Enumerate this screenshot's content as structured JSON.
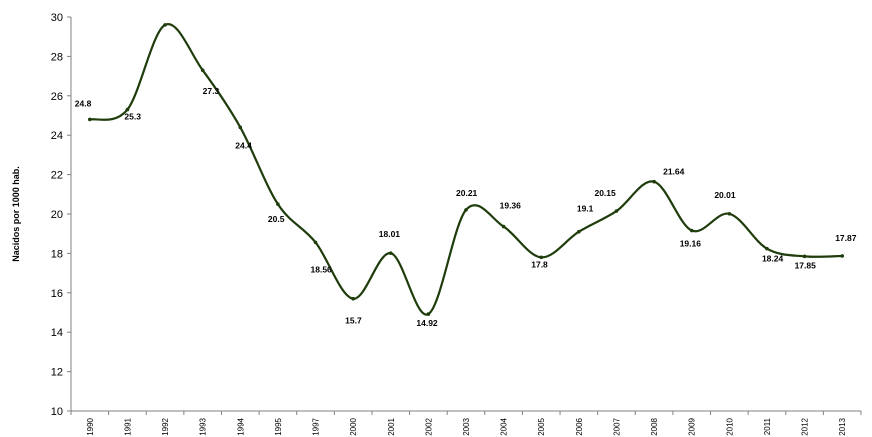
{
  "chart_data": {
    "type": "line",
    "categories": [
      "1990",
      "1991",
      "1992",
      "1993",
      "1994",
      "1995",
      "1997",
      "2000",
      "2001",
      "2002",
      "2003",
      "2004",
      "2005",
      "2006",
      "2007",
      "2008",
      "2009",
      "2010",
      "2011",
      "2012",
      "2013"
    ],
    "series": [
      {
        "values": [
          24.8,
          25.3,
          29.6,
          27.3,
          24.4,
          20.5,
          18.56,
          15.7,
          18.01,
          14.92,
          20.21,
          19.36,
          17.8,
          19.1,
          20.15,
          21.64,
          19.16,
          20.01,
          18.24,
          17.85,
          17.87
        ]
      }
    ],
    "data_labels": [
      "24.8",
      "25.3",
      "29.6",
      "27.3",
      "24.4",
      "20.5",
      "18.56",
      "15.7",
      "18.01",
      "14.92",
      "20.21",
      "19.36",
      "17.8",
      "19.1",
      "20.15",
      "21.64",
      "19.16",
      "20.01",
      "18.24",
      "17.85",
      "17.87"
    ],
    "title": "",
    "xlabel": "",
    "ylabel": "Nacidos por 1000 hab.",
    "ylim": [
      10,
      30
    ],
    "yticks": [
      10,
      12,
      14,
      16,
      18,
      20,
      22,
      24,
      26,
      28,
      30
    ],
    "grid": false,
    "smooth": true,
    "colors": {
      "line": "#1f3d0c",
      "marker": "#1f3d0c",
      "axis": "#808080"
    }
  }
}
